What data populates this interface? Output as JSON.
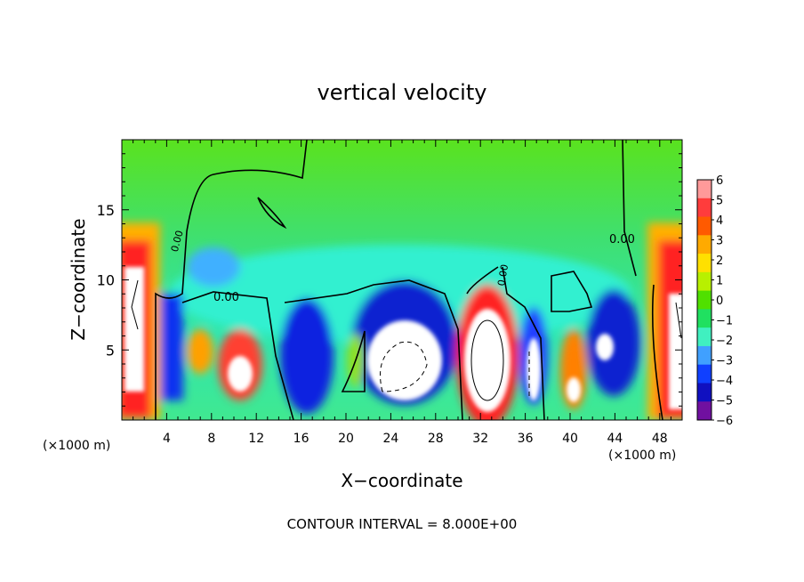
{
  "chart_data": {
    "type": "heatmap",
    "title": "vertical velocity",
    "xlabel": "X−coordinate",
    "ylabel": "Z−coordinate",
    "x_unit_label_left": "(×1000 m)",
    "x_unit_label_right": "(×1000 m)",
    "xlim": [
      0,
      50
    ],
    "ylim": [
      0,
      20
    ],
    "x_ticks": [
      "4",
      "8",
      "12",
      "16",
      "20",
      "24",
      "28",
      "32",
      "36",
      "40",
      "44",
      "48"
    ],
    "y_ticks": [
      "5",
      "10",
      "15"
    ],
    "colorbar_ticks": [
      "6",
      "5",
      "4",
      "3",
      "2",
      "1",
      "0",
      "−1",
      "−2",
      "−3",
      "−4",
      "−5",
      "−6"
    ],
    "colorbar_colors": [
      "#ff9a9a",
      "#ff3c3c",
      "#ff5a00",
      "#ffaa00",
      "#ffe000",
      "#b8f000",
      "#50e000",
      "#20e060",
      "#40f0c0",
      "#40a0ff",
      "#1040ff",
      "#1010c0",
      "#7010a0"
    ],
    "zero_contour_labels": [
      "0.00",
      "0.00",
      "0.00",
      "0.00"
    ],
    "footer": "CONTOUR INTERVAL = 8.000E+00",
    "grid": false,
    "legend": "colorbar-right"
  }
}
